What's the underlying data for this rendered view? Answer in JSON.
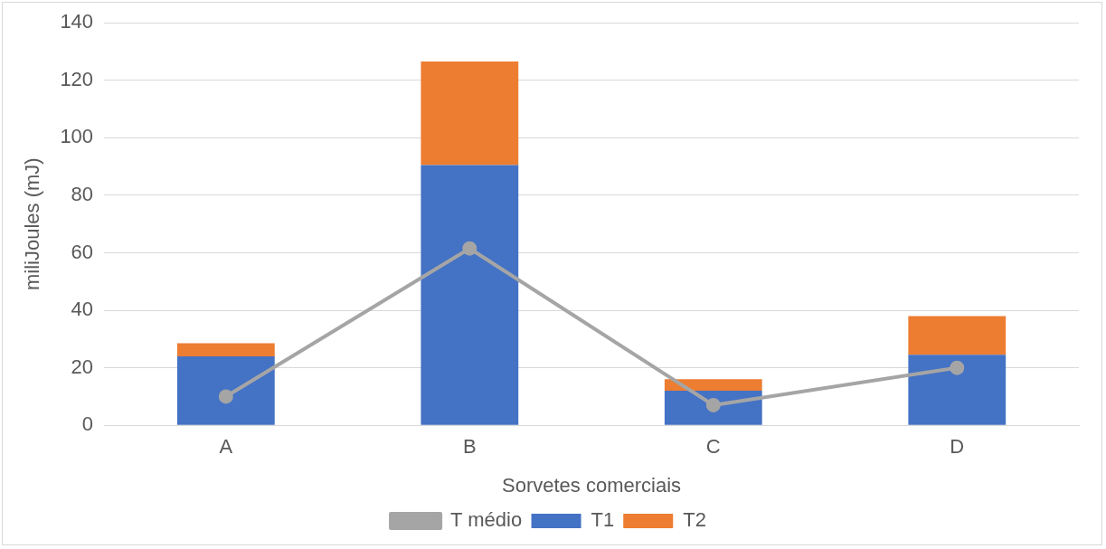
{
  "chart_data": {
    "type": "bar",
    "stacked": true,
    "xlabel": "Sorvetes comerciais",
    "ylabel": "miliJoules (mJ)",
    "categories": [
      "A",
      "B",
      "C",
      "D"
    ],
    "series": [
      {
        "name": "T1",
        "color": "#4472c4",
        "values": [
          24,
          90.5,
          12,
          24.5
        ]
      },
      {
        "name": "T2",
        "color": "#ed7d31",
        "values": [
          4.5,
          36,
          4,
          13.5
        ]
      },
      {
        "name": "T médio",
        "type": "line",
        "color": "#a5a5a5",
        "values": [
          10,
          61.5,
          7,
          20
        ],
        "marker": "circle"
      }
    ],
    "ylim": [
      0,
      140
    ],
    "yticks": [
      0,
      20,
      40,
      60,
      80,
      100,
      120,
      140
    ],
    "grid": "y",
    "legend": "bottom"
  }
}
